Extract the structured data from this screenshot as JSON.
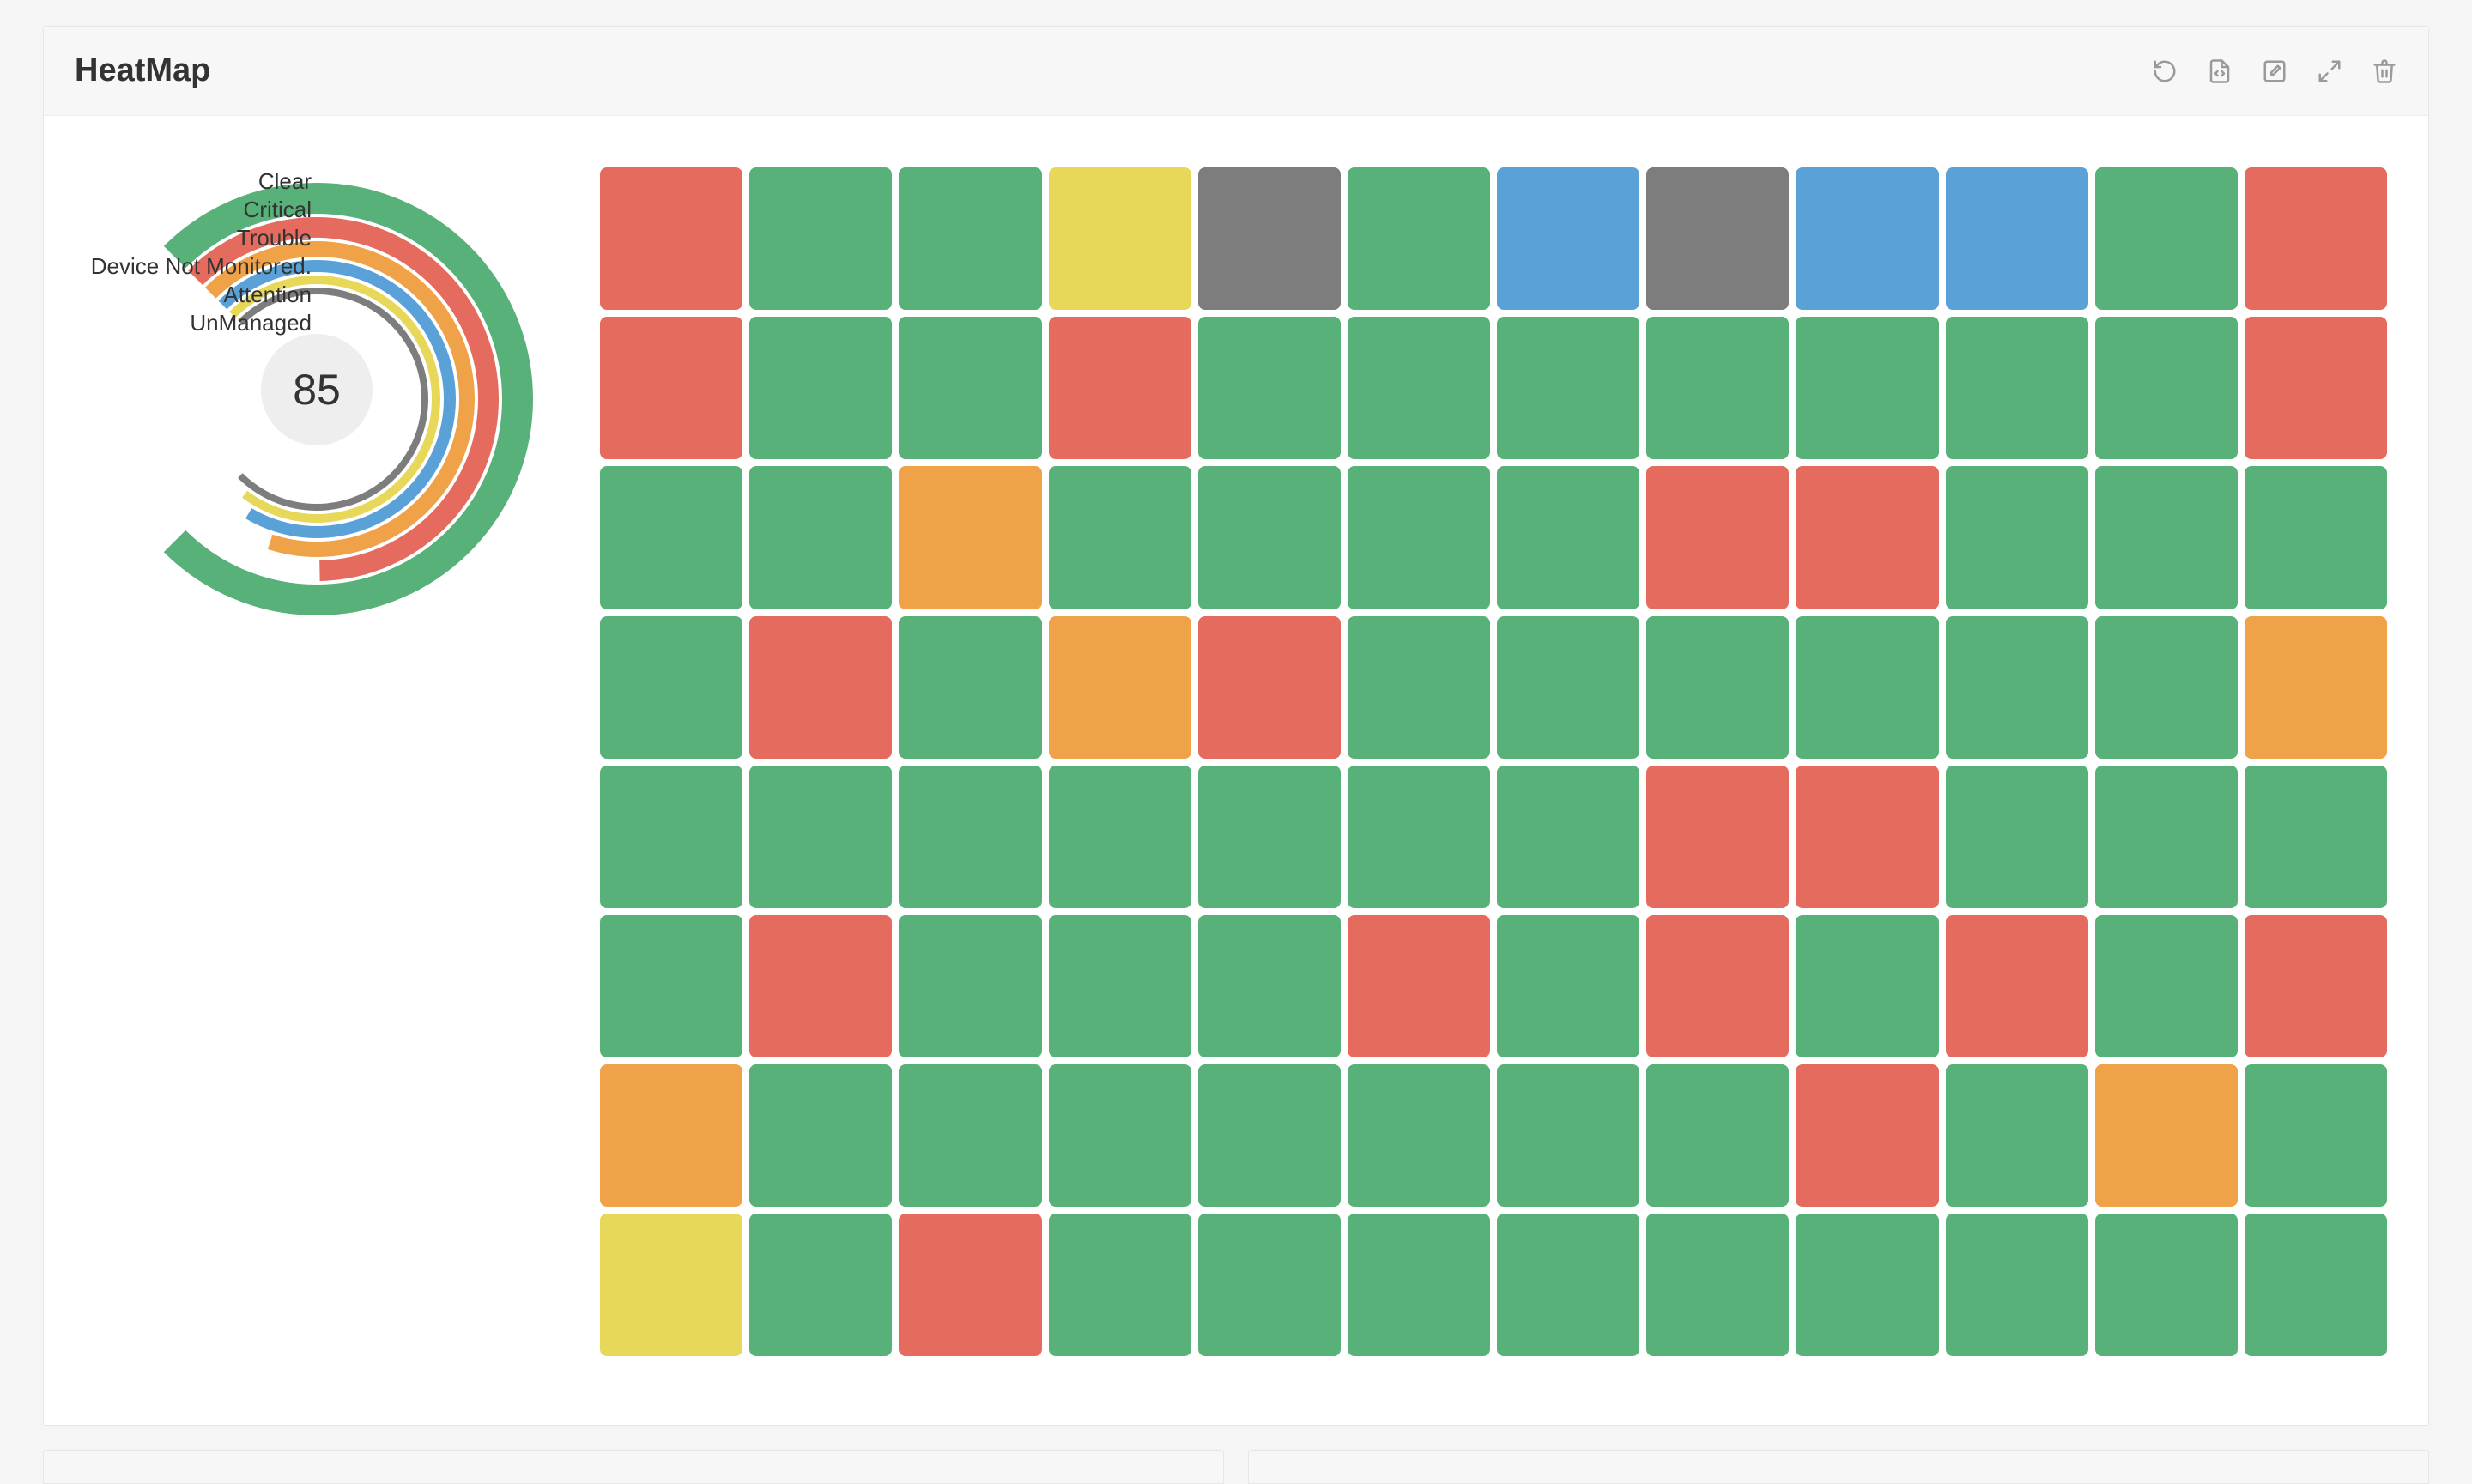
{
  "card": {
    "title": "HeatMap",
    "actions": [
      "refresh",
      "code",
      "edit",
      "expand",
      "delete"
    ]
  },
  "gauge": {
    "total": 85,
    "center_bg": "#eeeeee",
    "value_fontsize": 50,
    "label_fontsize": 26,
    "start_angle_deg": 135,
    "sweep_deg": 270,
    "gap_deg": 1.5,
    "outer_radius": 252,
    "band_gap": 4,
    "segments": [
      {
        "label": "Clear",
        "value": 44,
        "color": "#57b179",
        "thickness": 36
      },
      {
        "label": "Critical",
        "value": 27,
        "color": "#e46b5e",
        "thickness": 24
      },
      {
        "label": "Trouble",
        "value": 6,
        "color": "#f0a248",
        "thickness": 18
      },
      {
        "label": "Device Not Monitored.",
        "value": 4,
        "color": "#5aa1d8",
        "thickness": 14
      },
      {
        "label": "Attention",
        "value": 2,
        "color": "#e8d85a",
        "thickness": 10
      },
      {
        "label": "UnManaged",
        "value": 2,
        "color": "#7d7d7d",
        "thickness": 8
      }
    ]
  },
  "heatmap": {
    "cols": 12,
    "rows": 8,
    "cell_radius": 8,
    "gap": 8,
    "colors": {
      "g": "#57b179",
      "r": "#e46b5e",
      "o": "#f0a248",
      "b": "#5aa1d8",
      "y": "#e8d85a",
      "x": "#7d7d7d"
    },
    "cells": [
      [
        "r",
        "g",
        "g",
        "y",
        "x",
        "g",
        "b",
        "x",
        "b",
        "b",
        "g",
        "r"
      ],
      [
        "r",
        "g",
        "g",
        "r",
        "g",
        "g",
        "g",
        "g",
        "g",
        "g",
        "g",
        "r"
      ],
      [
        "g",
        "g",
        "o",
        "g",
        "g",
        "g",
        "g",
        "r",
        "r",
        "g",
        "g",
        "g"
      ],
      [
        "g",
        "r",
        "g",
        "o",
        "r",
        "g",
        "g",
        "g",
        "g",
        "g",
        "g",
        "o"
      ],
      [
        "g",
        "g",
        "g",
        "g",
        "g",
        "g",
        "g",
        "r",
        "r",
        "g",
        "g",
        "g"
      ],
      [
        "g",
        "r",
        "g",
        "g",
        "g",
        "r",
        "g",
        "r",
        "g",
        "r",
        "g",
        "r"
      ],
      [
        "o",
        "g",
        "g",
        "g",
        "g",
        "g",
        "g",
        "g",
        "r",
        "g",
        "o",
        "g"
      ],
      [
        "y",
        "g",
        "r",
        "g",
        "g",
        "g",
        "g",
        "g",
        "g",
        "g",
        "g",
        "g"
      ]
    ]
  },
  "colors": {
    "page_bg": "#f5f5f5",
    "card_bg": "#ffffff",
    "header_bg": "#f7f7f7",
    "border": "#e6e6e6",
    "icon": "#9a9a9a",
    "text": "#333333"
  }
}
